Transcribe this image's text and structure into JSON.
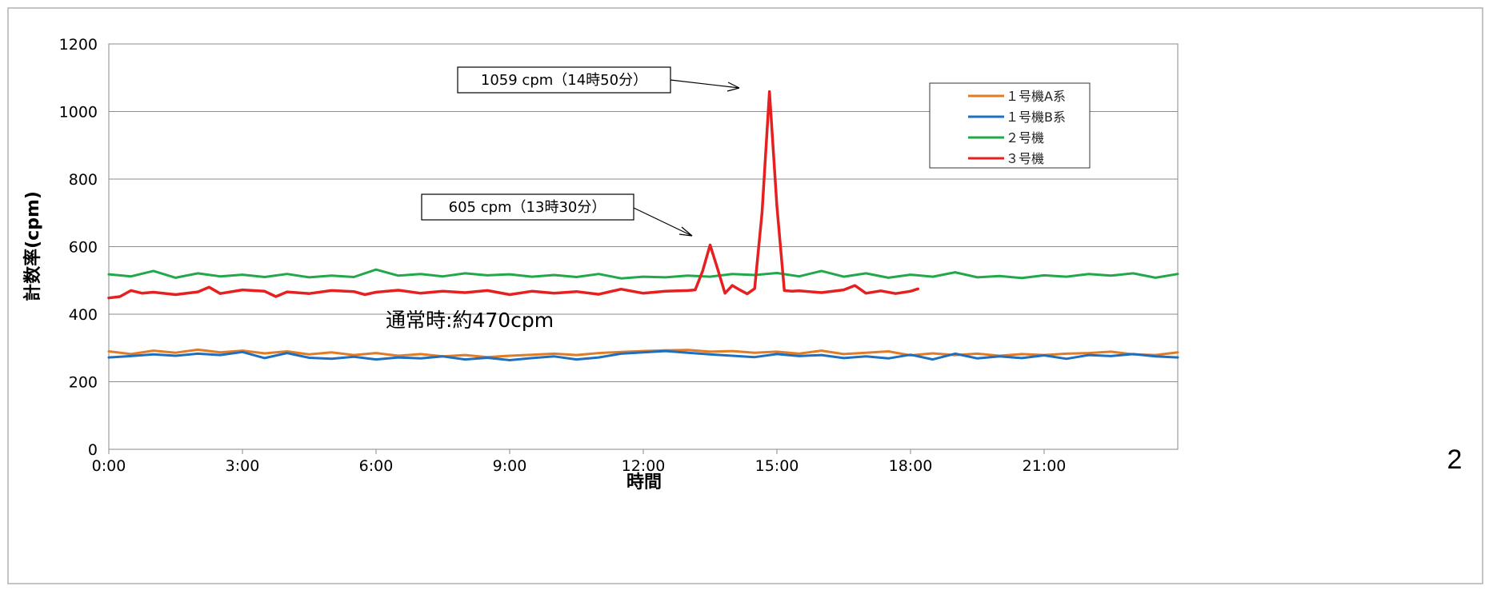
{
  "chart_data": {
    "type": "line",
    "xlabel": "時間",
    "ylabel": "計数率(cpm)",
    "ylim": [
      0,
      1200
    ],
    "yticks": [
      "0",
      "200",
      "400",
      "600",
      "800",
      "1000",
      "1200"
    ],
    "xlim_hours": [
      0,
      24
    ],
    "xticks": [
      "0:00",
      "3:00",
      "6:00",
      "9:00",
      "12:00",
      "15:00",
      "18:00",
      "21:00"
    ],
    "grid": "horizontal",
    "legend_position": "top-right",
    "series": [
      {
        "name": "１号機A系",
        "color": "#e07b27",
        "x": [
          "0:00",
          "0:30",
          "1:00",
          "1:30",
          "2:00",
          "2:30",
          "3:00",
          "3:30",
          "4:00",
          "4:30",
          "5:00",
          "5:30",
          "6:00",
          "6:30",
          "7:00",
          "7:30",
          "8:00",
          "8:30",
          "9:00",
          "9:30",
          "10:00",
          "10:30",
          "11:00",
          "11:30",
          "12:00",
          "12:30",
          "13:00",
          "13:30",
          "14:00",
          "14:30",
          "15:00",
          "15:30",
          "16:00",
          "16:30",
          "17:00",
          "17:30",
          "18:00",
          "18:30",
          "19:00",
          "19:30",
          "20:00",
          "20:30",
          "21:00",
          "21:30",
          "22:00",
          "22:30",
          "23:00",
          "23:30",
          "24:00"
        ],
        "values": [
          290,
          282,
          292,
          286,
          295,
          287,
          292,
          284,
          290,
          281,
          287,
          279,
          285,
          277,
          282,
          275,
          279,
          273,
          277,
          280,
          283,
          279,
          285,
          288,
          291,
          293,
          294,
          289,
          291,
          286,
          289,
          283,
          292,
          282,
          286,
          290,
          278,
          284,
          279,
          283,
          277,
          282,
          279,
          283,
          285,
          289,
          281,
          279,
          287
        ]
      },
      {
        "name": "１号機B系",
        "color": "#1f6fc0",
        "x": [
          "0:00",
          "0:30",
          "1:00",
          "1:30",
          "2:00",
          "2:30",
          "3:00",
          "3:30",
          "4:00",
          "4:30",
          "5:00",
          "5:30",
          "6:00",
          "6:30",
          "7:00",
          "7:30",
          "8:00",
          "8:30",
          "9:00",
          "9:30",
          "10:00",
          "10:30",
          "11:00",
          "11:30",
          "12:00",
          "12:30",
          "13:00",
          "13:30",
          "14:00",
          "14:30",
          "15:00",
          "15:30",
          "16:00",
          "16:30",
          "17:00",
          "17:30",
          "18:00",
          "18:30",
          "19:00",
          "19:30",
          "20:00",
          "20:30",
          "21:00",
          "21:30",
          "22:00",
          "22:30",
          "23:00",
          "23:30",
          "24:00"
        ],
        "values": [
          272,
          276,
          281,
          277,
          283,
          279,
          288,
          270,
          285,
          271,
          268,
          274,
          266,
          272,
          269,
          275,
          266,
          271,
          264,
          270,
          275,
          266,
          272,
          283,
          287,
          291,
          286,
          281,
          277,
          273,
          282,
          276,
          279,
          270,
          275,
          269,
          280,
          266,
          283,
          269,
          275,
          270,
          278,
          268,
          279,
          276,
          282,
          275,
          272
        ]
      },
      {
        "name": "２号機",
        "color": "#22a84a",
        "x": [
          "0:00",
          "0:30",
          "1:00",
          "1:30",
          "2:00",
          "2:30",
          "3:00",
          "3:30",
          "4:00",
          "4:30",
          "5:00",
          "5:30",
          "6:00",
          "6:30",
          "7:00",
          "7:30",
          "8:00",
          "8:30",
          "9:00",
          "9:30",
          "10:00",
          "10:30",
          "11:00",
          "11:30",
          "12:00",
          "12:30",
          "13:00",
          "13:30",
          "14:00",
          "14:30",
          "15:00",
          "15:30",
          "16:00",
          "16:30",
          "17:00",
          "17:30",
          "18:00",
          "18:30",
          "19:00",
          "19:30",
          "20:00",
          "20:30",
          "21:00",
          "21:30",
          "22:00",
          "22:30",
          "23:00",
          "23:30",
          "24:00"
        ],
        "values": [
          518,
          512,
          528,
          508,
          521,
          512,
          517,
          510,
          519,
          509,
          514,
          510,
          532,
          514,
          519,
          512,
          521,
          515,
          518,
          511,
          516,
          510,
          519,
          506,
          511,
          509,
          514,
          511,
          519,
          516,
          522,
          512,
          528,
          511,
          521,
          508,
          517,
          511,
          524,
          509,
          513,
          507,
          515,
          511,
          519,
          514,
          521,
          508,
          519
        ]
      },
      {
        "name": "３号機",
        "color": "#e62020",
        "x": [
          "0:00",
          "0:15",
          "0:30",
          "0:45",
          "1:00",
          "1:30",
          "2:00",
          "2:15",
          "2:30",
          "3:00",
          "3:30",
          "3:45",
          "4:00",
          "4:30",
          "5:00",
          "5:30",
          "5:45",
          "6:00",
          "6:30",
          "7:00",
          "7:30",
          "8:00",
          "8:30",
          "9:00",
          "9:30",
          "10:00",
          "10:30",
          "11:00",
          "11:30",
          "12:00",
          "12:30",
          "13:00",
          "13:10",
          "13:20",
          "13:30",
          "13:40",
          "13:50",
          "14:00",
          "14:10",
          "14:20",
          "14:30",
          "14:40",
          "14:50",
          "15:00",
          "15:10",
          "15:20",
          "15:30",
          "16:00",
          "16:30",
          "16:45",
          "17:00",
          "17:20",
          "17:40",
          "18:00",
          "18:10"
        ],
        "values": [
          448,
          452,
          470,
          462,
          465,
          458,
          466,
          480,
          461,
          472,
          468,
          452,
          466,
          461,
          470,
          467,
          458,
          465,
          471,
          462,
          468,
          464,
          470,
          458,
          468,
          462,
          467,
          459,
          474,
          462,
          468,
          470,
          472,
          528,
          605,
          535,
          462,
          485,
          472,
          460,
          476,
          700,
          1059,
          720,
          470,
          468,
          469,
          464,
          472,
          485,
          462,
          469,
          461,
          468,
          475
        ]
      }
    ],
    "annotations": [
      {
        "text": "1059 cpm（14時50分）"
      },
      {
        "text": "605 cpm（13時30分）"
      },
      {
        "text": "通常時:約470cpm"
      }
    ]
  },
  "page_number": "2"
}
